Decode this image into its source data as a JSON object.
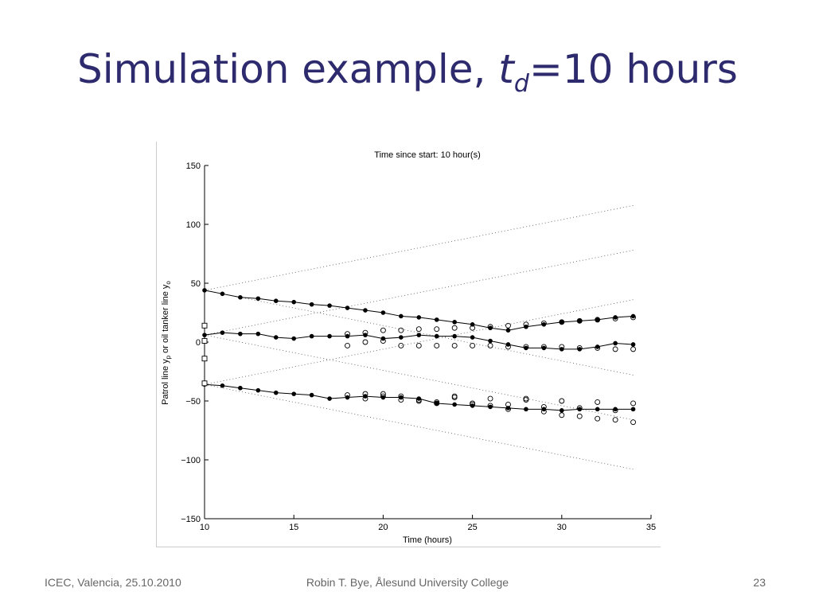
{
  "slide": {
    "title_prefix": "Simulation example, ",
    "title_var": "t",
    "title_sub": "d",
    "title_suffix": "=10 hours"
  },
  "footer": {
    "left": "ICEC, Valencia, 25.10.2010",
    "center": "Robin T. Bye, Ålesund University College",
    "right": "23"
  },
  "chart_data": {
    "type": "scatter",
    "title": "Time since start: 10 hour(s)",
    "xlabel": "Time (hours)",
    "ylabel_text": "Patrol line y",
    "ylabel_sub1": "p",
    "ylabel_mid": " or oil tanker line y",
    "ylabel_sub2": "o",
    "xlim": [
      10,
      35
    ],
    "ylim": [
      -150,
      150
    ],
    "xticks": [
      10,
      15,
      20,
      25,
      30,
      35
    ],
    "yticks": [
      -150,
      -100,
      -50,
      0,
      50,
      100,
      150
    ],
    "grid": false,
    "patrol_lines": [
      {
        "name": "",
        "x": [
          10,
          11,
          12,
          13,
          14,
          15,
          16,
          17,
          18,
          19,
          20,
          21,
          22,
          23,
          24,
          25,
          26,
          27,
          28,
          29,
          30,
          31,
          32,
          33,
          34
        ],
        "y": [
          44,
          41,
          38,
          37,
          35,
          34,
          32,
          31,
          29,
          27,
          25,
          22,
          21,
          19,
          17,
          15,
          12,
          10,
          13,
          15,
          17,
          18,
          19,
          21,
          22
        ]
      },
      {
        "name": "",
        "x": [
          10,
          11,
          12,
          13,
          14,
          15,
          16,
          17,
          18,
          19,
          20,
          21,
          22,
          23,
          24,
          25,
          26,
          27,
          28,
          29,
          30,
          31,
          32,
          33,
          34
        ],
        "y": [
          6,
          8,
          7,
          7,
          4,
          3,
          5,
          5,
          5,
          6,
          3,
          4,
          6,
          5,
          5,
          4,
          1,
          -2,
          -5,
          -5,
          -6,
          -6,
          -4,
          -1,
          -2
        ]
      },
      {
        "name": "",
        "x": [
          10,
          11,
          12,
          13,
          14,
          15,
          16,
          17,
          18,
          19,
          20,
          21,
          22,
          23,
          24,
          25,
          26,
          27,
          28,
          29,
          30,
          31,
          32,
          33,
          34
        ],
        "y": [
          -36,
          -37,
          -39,
          -41,
          -43,
          -44,
          -45,
          -48,
          -47,
          -46,
          -47,
          -47,
          -48,
          -52,
          -53,
          -54,
          -55,
          -56,
          -57,
          -57,
          -58,
          -57,
          -57,
          -57,
          -57
        ]
      }
    ],
    "tanker_points": {
      "x": [
        18,
        18,
        19,
        19,
        20,
        20,
        21,
        21,
        22,
        22,
        23,
        23,
        24,
        24,
        25,
        25,
        26,
        26,
        27,
        27,
        28,
        28,
        29,
        29,
        30,
        30,
        31,
        31,
        32,
        32,
        33,
        33,
        34,
        34,
        18,
        19,
        20,
        21,
        22,
        23,
        24,
        25,
        26,
        27,
        28,
        29,
        30,
        31,
        32,
        33,
        34,
        19,
        20,
        21,
        22,
        23,
        24,
        25,
        26,
        27,
        28,
        29,
        30,
        31,
        32,
        33,
        34
      ],
      "y": [
        7,
        -3,
        8,
        0,
        10,
        1,
        10,
        -3,
        11,
        -3,
        11,
        -3,
        12,
        -3,
        12,
        -3,
        13,
        -3,
        14,
        -4,
        15,
        -4,
        16,
        -4,
        17,
        -4,
        18,
        -5,
        19,
        -5,
        20,
        -6,
        21,
        -6,
        -45,
        -44,
        -46,
        -46,
        -49,
        -51,
        -47,
        -52,
        -48,
        -53,
        -49,
        -55,
        -50,
        -56,
        -51,
        -58,
        -52,
        -48,
        -44,
        -49,
        -50,
        -52,
        -46,
        -53,
        -54,
        -57,
        -48,
        -59,
        -62,
        -63,
        -65,
        -66,
        -68
      ]
    },
    "start_markers": {
      "x": [
        10,
        10,
        10,
        10
      ],
      "y": [
        14,
        1,
        -14,
        -35
      ]
    },
    "envelope_lines": [
      {
        "x": [
          10,
          34
        ],
        "y": [
          44,
          116
        ]
      },
      {
        "x": [
          10,
          34
        ],
        "y": [
          44,
          -28
        ]
      },
      {
        "x": [
          10,
          34
        ],
        "y": [
          6,
          78
        ]
      },
      {
        "x": [
          10,
          34
        ],
        "y": [
          6,
          -66
        ]
      },
      {
        "x": [
          10,
          34
        ],
        "y": [
          -36,
          36
        ]
      },
      {
        "x": [
          10,
          34
        ],
        "y": [
          -36,
          -108
        ]
      }
    ]
  }
}
